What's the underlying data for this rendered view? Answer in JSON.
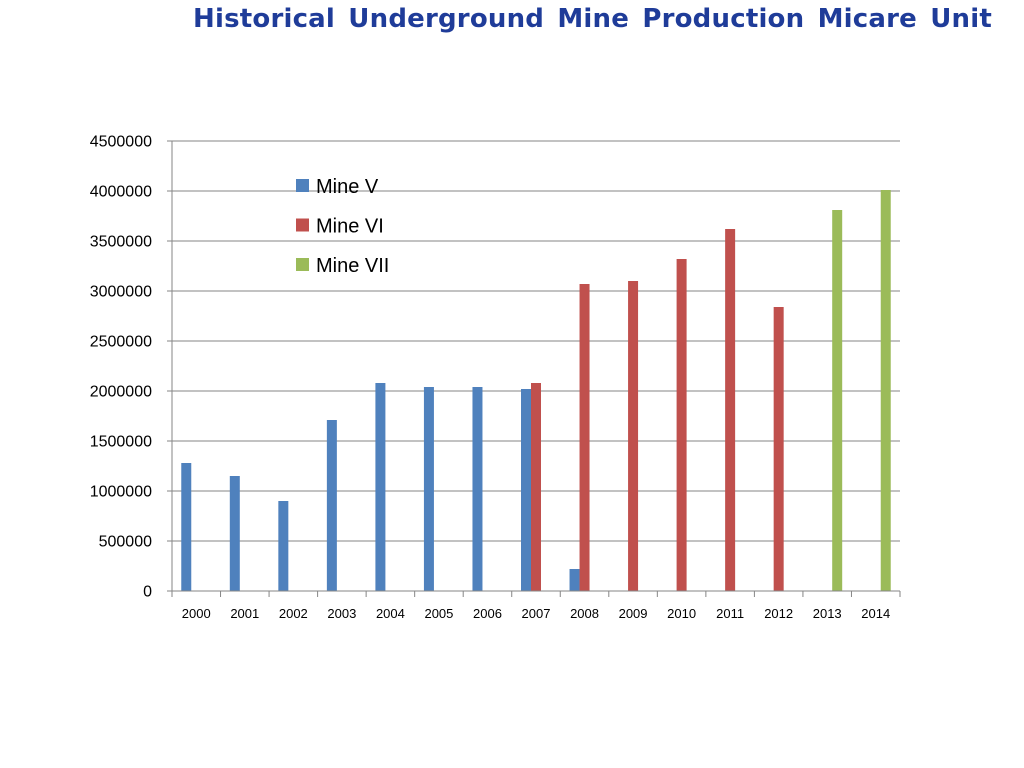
{
  "slide": {
    "title": "Historical Underground Mine Production Micare Unit"
  },
  "colors": {
    "title": "#1f3c99",
    "mine_v": "#4f81bd",
    "mine_vi": "#c0504d",
    "mine_vii": "#9bbb59",
    "gridline": "#868686"
  },
  "chart_data": {
    "type": "bar",
    "title": "Historical Underground Mine Production Micare Unit",
    "xlabel": "",
    "ylabel": "",
    "categories": [
      "2000",
      "2001",
      "2002",
      "2003",
      "2004",
      "2005",
      "2006",
      "2007",
      "2008",
      "2009",
      "2010",
      "2011",
      "2012",
      "2013",
      "2014"
    ],
    "series": [
      {
        "name": "Mine V",
        "color": "#4f81bd",
        "values": [
          1280000,
          1150000,
          900000,
          1710000,
          2080000,
          2040000,
          2040000,
          2020000,
          220000,
          null,
          null,
          null,
          null,
          null,
          null
        ]
      },
      {
        "name": "Mine VI",
        "color": "#c0504d",
        "values": [
          null,
          null,
          null,
          null,
          null,
          null,
          null,
          2080000,
          3070000,
          3100000,
          3320000,
          3620000,
          2840000,
          null,
          null
        ]
      },
      {
        "name": "Mine VII",
        "color": "#9bbb59",
        "values": [
          null,
          null,
          null,
          null,
          null,
          null,
          null,
          null,
          null,
          null,
          null,
          null,
          null,
          3810000,
          4010000
        ]
      }
    ],
    "ylim": [
      0,
      4500000
    ],
    "yticks": [
      0,
      500000,
      1000000,
      1500000,
      2000000,
      2500000,
      3000000,
      3500000,
      4000000,
      4500000
    ],
    "grid": true,
    "legend_position": "top-left inside plot"
  }
}
